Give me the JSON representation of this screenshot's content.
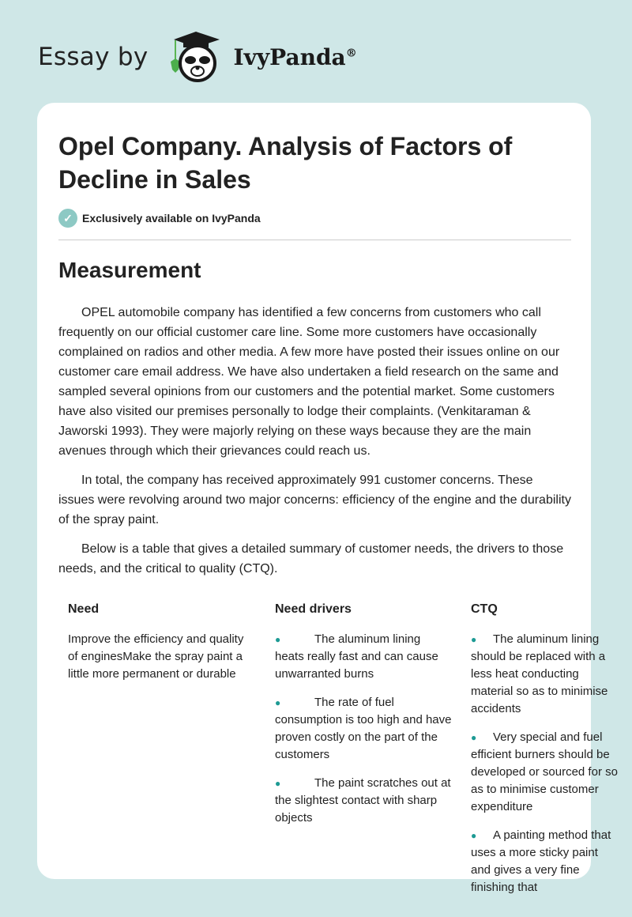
{
  "header": {
    "prefix": "Essay by",
    "brand": "IvyPanda",
    "registered": "®"
  },
  "article": {
    "title": "Opel Company. Analysis of Factors of Decline in Sales",
    "badge": "Exclusively available on IvyPanda",
    "section": "Measurement",
    "paragraphs": [
      "OPEL automobile company has identified a few concerns from customers who call frequently on our official customer care line. Some more customers have occasionally complained on radios and other media. A few more have posted their issues online on our customer care email address. We have also undertaken a field research on the same and sampled several opinions from our customers and the potential market. Some customers have also visited our premises personally to lodge their complaints. (Venkitaraman & Jaworski 1993). They were majorly relying on these ways because they are the main avenues through which their grievances could reach us.",
      "In total, the company has received approximately 991 customer concerns. These issues were revolving around two major concerns: efficiency of the engine and the durability of the spray paint.",
      "Below is a table that gives a detailed summary of customer needs, the drivers to those needs, and the critical to quality (CTQ)."
    ],
    "table": {
      "headers": [
        "Need",
        "Need drivers",
        "CTQ"
      ],
      "need": "Improve the efficiency and quality of enginesMake the spray paint a little more permanent or durable",
      "drivers": [
        "The aluminum lining heats really fast and can cause unwarranted burns",
        "The rate of fuel consumption is too high and have proven costly on the part of the customers",
        "The paint scratches out at the slightest contact with sharp objects"
      ],
      "ctq": [
        "The aluminum lining should be replaced with a less heat conducting material so as to minimise accidents",
        "Very special and fuel efficient burners should be developed or sourced for so as to minimise customer expenditure",
        "A painting method that uses a more sticky paint and gives a very fine finishing that"
      ]
    }
  }
}
